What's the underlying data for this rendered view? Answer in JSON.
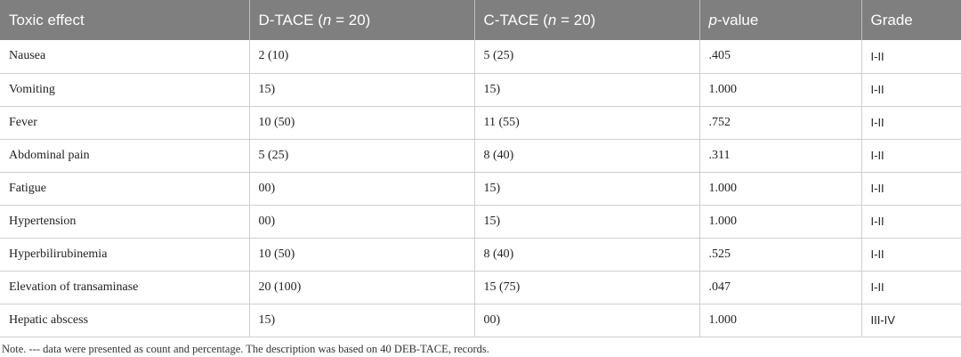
{
  "table": {
    "headers": {
      "toxic_effect": "Toxic effect",
      "d_tace_pre": "D-TACE (",
      "d_tace_n": "n",
      "d_tace_post": " = 20)",
      "c_tace_pre": "C-TACE (",
      "c_tace_n": "n",
      "c_tace_post": " = 20)",
      "p_value_p": "p",
      "p_value_rest": "-value",
      "grade": "Grade"
    },
    "rows": [
      {
        "effect": "Nausea",
        "d_tace": "2 (10)",
        "c_tace": "5 (25)",
        "p": ".405",
        "grade": "I-II"
      },
      {
        "effect": "Vomiting",
        "d_tace": "15)",
        "c_tace": "15)",
        "p": "1.000",
        "grade": "I-II"
      },
      {
        "effect": "Fever",
        "d_tace": "10 (50)",
        "c_tace": "11 (55)",
        "p": ".752",
        "grade": "I-II"
      },
      {
        "effect": "Abdominal pain",
        "d_tace": "5 (25)",
        "c_tace": "8 (40)",
        "p": ".311",
        "grade": "I-II"
      },
      {
        "effect": "Fatigue",
        "d_tace": "00)",
        "c_tace": "15)",
        "p": "1.000",
        "grade": "I-II"
      },
      {
        "effect": "Hypertension",
        "d_tace": "00)",
        "c_tace": "15)",
        "p": "1.000",
        "grade": "I-II"
      },
      {
        "effect": "Hyperbilirubinemia",
        "d_tace": "10 (50)",
        "c_tace": "8 (40)",
        "p": ".525",
        "grade": "I-II"
      },
      {
        "effect": "Elevation of transaminase",
        "d_tace": "20 (100)",
        "c_tace": "15 (75)",
        "p": ".047",
        "grade": "I-II"
      },
      {
        "effect": "Hepatic abscess",
        "d_tace": "15)",
        "c_tace": "00)",
        "p": "1.000",
        "grade": "III-IV"
      }
    ]
  },
  "note": "Note. --- data were presented as count and percentage. The description was based on 40 DEB-TACE, records."
}
